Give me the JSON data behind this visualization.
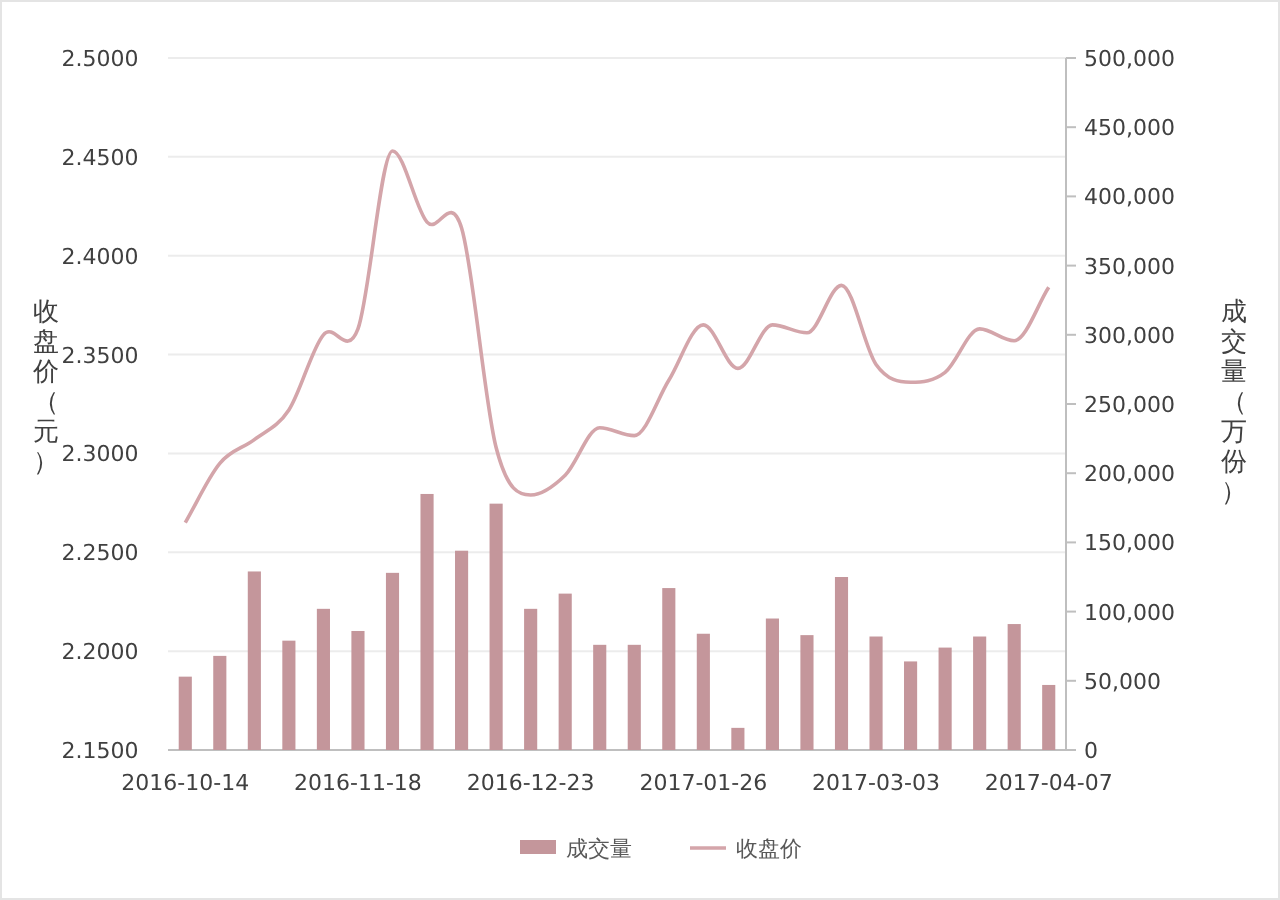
{
  "chart_data": {
    "type": "bar",
    "ylabel": "收盘价（元）",
    "y2label": "成交量（万份）",
    "categories": [
      "2016-10-14",
      null,
      null,
      null,
      null,
      "2016-11-18",
      null,
      null,
      null,
      null,
      "2016-12-23",
      null,
      null,
      null,
      null,
      "2017-01-26",
      null,
      null,
      null,
      null,
      "2017-03-03",
      null,
      null,
      null,
      null,
      "2017-04-07"
    ],
    "series": [
      {
        "name": "成交量",
        "axis": "y2",
        "color": "#c4969b",
        "values": [
          53000,
          68000,
          129000,
          79000,
          102000,
          86000,
          128000,
          185000,
          144000,
          178000,
          102000,
          113000,
          76000,
          76000,
          117000,
          84000,
          16000,
          95000,
          83000,
          125000,
          82000,
          64000,
          74000,
          82000,
          91000,
          47000
        ]
      },
      {
        "name": "收盘价",
        "type": "line",
        "axis": "y",
        "color": "#d4a5aa",
        "values": [
          2.265,
          2.295,
          2.307,
          2.322,
          2.36,
          2.363,
          2.453,
          2.417,
          2.414,
          2.303,
          2.279,
          2.289,
          2.313,
          2.309,
          2.337,
          2.365,
          2.343,
          2.365,
          2.361,
          2.385,
          2.345,
          2.336,
          2.341,
          2.363,
          2.357,
          2.384
        ]
      }
    ],
    "ylim": [
      2.15,
      2.5
    ],
    "yticks": [
      {
        "value": 2.15,
        "label": "2.1500"
      },
      {
        "value": 2.2,
        "label": "2.2000"
      },
      {
        "value": 2.25,
        "label": "2.2500"
      },
      {
        "value": 2.3,
        "label": "2.3000"
      },
      {
        "value": 2.35,
        "label": "2.3500"
      },
      {
        "value": 2.4,
        "label": "2.4000"
      },
      {
        "value": 2.45,
        "label": "2.4500"
      },
      {
        "value": 2.5,
        "label": "2.5000"
      }
    ],
    "y2lim": [
      0,
      500000
    ],
    "y2ticks": [
      {
        "value": 0,
        "label": "0"
      },
      {
        "value": 50000,
        "label": "50,000"
      },
      {
        "value": 100000,
        "label": "100,000"
      },
      {
        "value": 150000,
        "label": "150,000"
      },
      {
        "value": 200000,
        "label": "200,000"
      },
      {
        "value": 250000,
        "label": "250,000"
      },
      {
        "value": 300000,
        "label": "300,000"
      },
      {
        "value": 350000,
        "label": "350,000"
      },
      {
        "value": 400000,
        "label": "400,000"
      },
      {
        "value": 450000,
        "label": "450,000"
      },
      {
        "value": 500000,
        "label": "500,000"
      }
    ],
    "grid": "y",
    "legend": "bottom",
    "marker": "none",
    "line_style": "solid"
  }
}
